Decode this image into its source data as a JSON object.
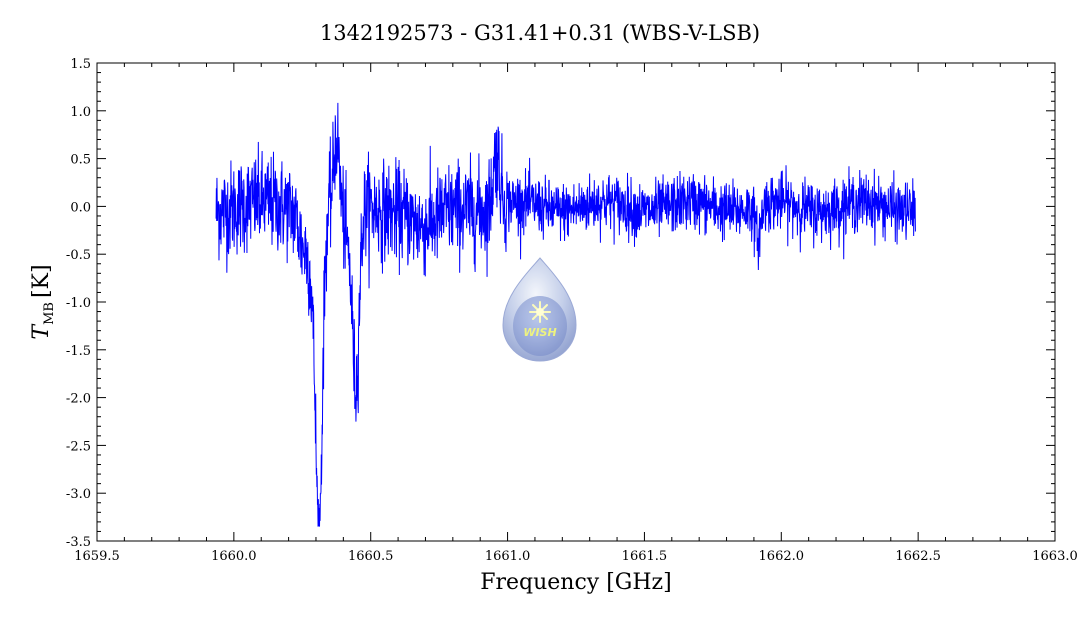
{
  "chart_data": {
    "type": "line",
    "title": "1342192573 - G31.41+0.31 (WBS-V-LSB)",
    "xlabel": "Frequency [GHz]",
    "ylabel_main": "T",
    "ylabel_sub": "MB",
    "ylabel_unit": "[K]",
    "xlim": [
      1659.5,
      1663.0
    ],
    "ylim": [
      -3.5,
      1.5
    ],
    "xticks": [
      1659.5,
      1660.0,
      1660.5,
      1661.0,
      1661.5,
      1662.0,
      1662.5,
      1663.0
    ],
    "xtick_labels": [
      "1659.5",
      "1660.0",
      "1660.5",
      "1661.0",
      "1661.5",
      "1662.0",
      "1662.5",
      "1663.0"
    ],
    "yticks": [
      -3.5,
      -3.0,
      -2.5,
      -2.0,
      -1.5,
      -1.0,
      -0.5,
      0.0,
      0.5,
      1.0,
      1.5
    ],
    "ytick_labels": [
      "-3.5",
      "-3.0",
      "-2.5",
      "-2.0",
      "-1.5",
      "-1.0",
      "-0.5",
      "0.0",
      "0.5",
      "1.0",
      "1.5"
    ],
    "grid": false,
    "series": [
      {
        "color": "#0000ff",
        "x_start": 1659.935,
        "x_end": 1662.49,
        "baseline_rms": 0.2,
        "features": [
          {
            "center": 1660.31,
            "depth": -3.3
          },
          {
            "center": 1660.445,
            "depth": -2.1
          },
          {
            "center": 1660.375,
            "peak": 1.15
          },
          {
            "center": 1660.96,
            "peak": 1.03
          },
          {
            "center": 1661.915,
            "depth": -0.85
          }
        ]
      }
    ],
    "logo_text": "WISH",
    "logo_color": "#eaf06a"
  }
}
